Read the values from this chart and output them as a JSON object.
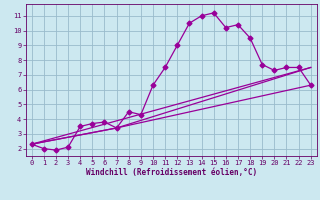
{
  "bg_color": "#cce8f0",
  "line_color": "#990099",
  "grid_color": "#99bbcc",
  "xlabel": "Windchill (Refroidissement éolien,°C)",
  "xlabel_color": "#660066",
  "tick_color": "#660066",
  "xlim": [
    -0.5,
    23.5
  ],
  "ylim": [
    1.5,
    11.8
  ],
  "xticks": [
    0,
    1,
    2,
    3,
    4,
    5,
    6,
    7,
    8,
    9,
    10,
    11,
    12,
    13,
    14,
    15,
    16,
    17,
    18,
    19,
    20,
    21,
    22,
    23
  ],
  "yticks": [
    2,
    3,
    4,
    5,
    6,
    7,
    8,
    9,
    10,
    11
  ],
  "line1_x": [
    0,
    1,
    2,
    3,
    4,
    5,
    6,
    7,
    8,
    9,
    10,
    11,
    12,
    13,
    14,
    15,
    16,
    17,
    18,
    19,
    20,
    21,
    22,
    23
  ],
  "line1_y": [
    2.3,
    2.0,
    1.9,
    2.1,
    3.5,
    3.7,
    3.8,
    3.4,
    4.5,
    4.3,
    6.3,
    7.5,
    9.0,
    10.5,
    11.0,
    11.2,
    10.2,
    10.4,
    9.5,
    7.7,
    7.3,
    7.5,
    7.5,
    6.3
  ],
  "line2_x": [
    0,
    7,
    23
  ],
  "line2_y": [
    2.3,
    3.4,
    6.3
  ],
  "line3_x": [
    0,
    7,
    23
  ],
  "line3_y": [
    2.3,
    3.4,
    7.5
  ],
  "line4_x": [
    0,
    23
  ],
  "line4_y": [
    2.3,
    7.5
  ],
  "markersize": 2.5,
  "linewidth": 0.9,
  "tick_fontsize": 5.0,
  "xlabel_fontsize": 5.5
}
